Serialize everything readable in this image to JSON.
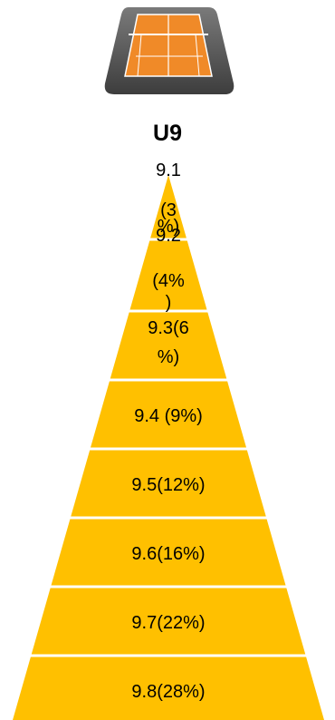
{
  "title": "U9",
  "icon": "tennis-court-icon",
  "colors": {
    "segment_fill": "#FFC000",
    "separator": "#FFFFFF",
    "icon_body": "#555555",
    "court_orange": "#F08A28"
  },
  "levels": [
    {
      "text": "9.1 (3%)",
      "lines": [
        "9.1",
        "(3",
        "%)"
      ]
    },
    {
      "text": "9.2 (4%)",
      "lines": [
        "9.2",
        "(4%",
        ")"
      ]
    },
    {
      "text": "9.3(6%)",
      "lines": [
        "9.3(6",
        "%)"
      ]
    },
    {
      "text": "9.4 (9%)",
      "lines": [
        "9.4 (9%)"
      ]
    },
    {
      "text": "9.5(12%)",
      "lines": [
        "9.5(12%)"
      ]
    },
    {
      "text": "9.6(16%)",
      "lines": [
        "9.6(16%)"
      ]
    },
    {
      "text": "9.7(22%)",
      "lines": [
        "9.7(22%)"
      ]
    },
    {
      "text": "9.8(28%)",
      "lines": [
        "9.8(28%)"
      ]
    }
  ]
}
